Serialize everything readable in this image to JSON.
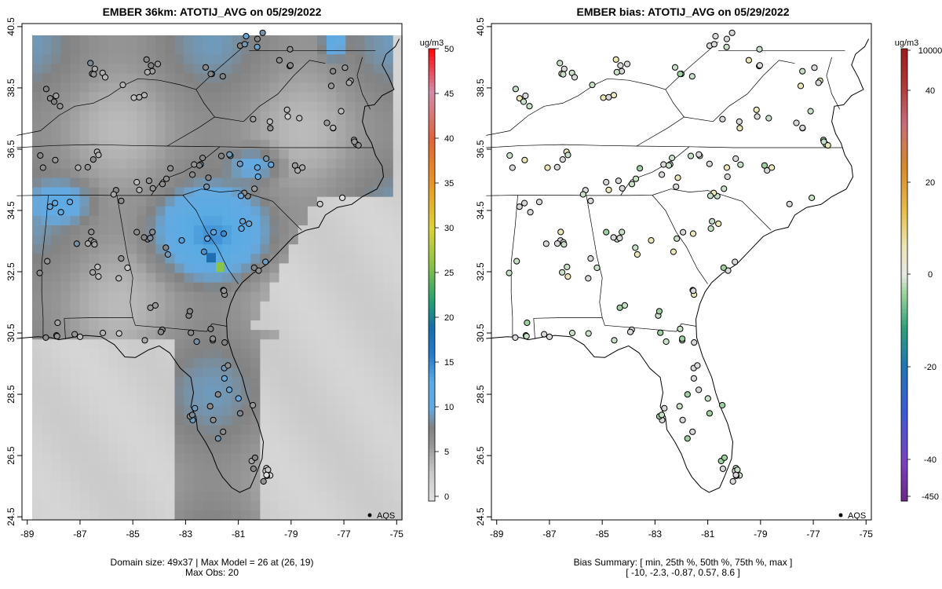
{
  "left_panel": {
    "title": "EMBER 36km: ATOTIJ_AVG on 05/29/2022",
    "footer_line1": "Domain size: 49x37 | Max Model = 26 at (26, 19)",
    "footer_line2": "Max Obs: 20",
    "legend_label": "AQS",
    "colorbar": {
      "unit": "ug/m3",
      "ticks": [
        "0",
        "5",
        "10",
        "15",
        "20",
        "25",
        "30",
        "35",
        "40",
        "45",
        "50"
      ],
      "tick_values": [
        0,
        5,
        10,
        15,
        20,
        25,
        30,
        35,
        40,
        45,
        50
      ],
      "range": [
        0,
        50
      ]
    }
  },
  "right_panel": {
    "title": "EMBER bias: ATOTIJ_AVG on 05/29/2022",
    "footer_line1": "Bias Summary: [ min, 25th %, 50th %, 75th %, max ]",
    "footer_line2": "[ -10,   -2.3,   -0.87,   0.57,   8.6 ]",
    "legend_label": "AQS",
    "colorbar": {
      "unit": "ug/m3",
      "ticks": [
        "10000",
        "40",
        "20",
        "0",
        "-20",
        "-40",
        "-450"
      ],
      "tick_values": [
        10000,
        40,
        20,
        0,
        -20,
        -40,
        -450
      ]
    }
  },
  "axes": {
    "x_ticks": [
      "-89",
      "-87",
      "-85",
      "-83",
      "-81",
      "-79",
      "-77",
      "-75"
    ],
    "x_values": [
      -89,
      -87,
      -85,
      -83,
      -81,
      -79,
      -77,
      -75
    ],
    "y_ticks": [
      "24.5",
      "26.5",
      "28.5",
      "30.5",
      "32.5",
      "34.5",
      "36.5",
      "38.5",
      "40.5"
    ],
    "y_values": [
      24.5,
      26.5,
      28.5,
      30.5,
      32.5,
      34.5,
      36.5,
      38.5,
      40.5
    ],
    "lon_range": [
      -89.2,
      -74.8
    ],
    "lat_range": [
      24.4,
      40.6
    ]
  },
  "colors": {
    "frame": "#000000",
    "grid_low": "#e0e0e0",
    "grid_mid": "#8c8c8c",
    "grid_high": "#59abe3",
    "max_cell": "#8bc34a",
    "bias_neutral": "#d9d9d9"
  }
}
